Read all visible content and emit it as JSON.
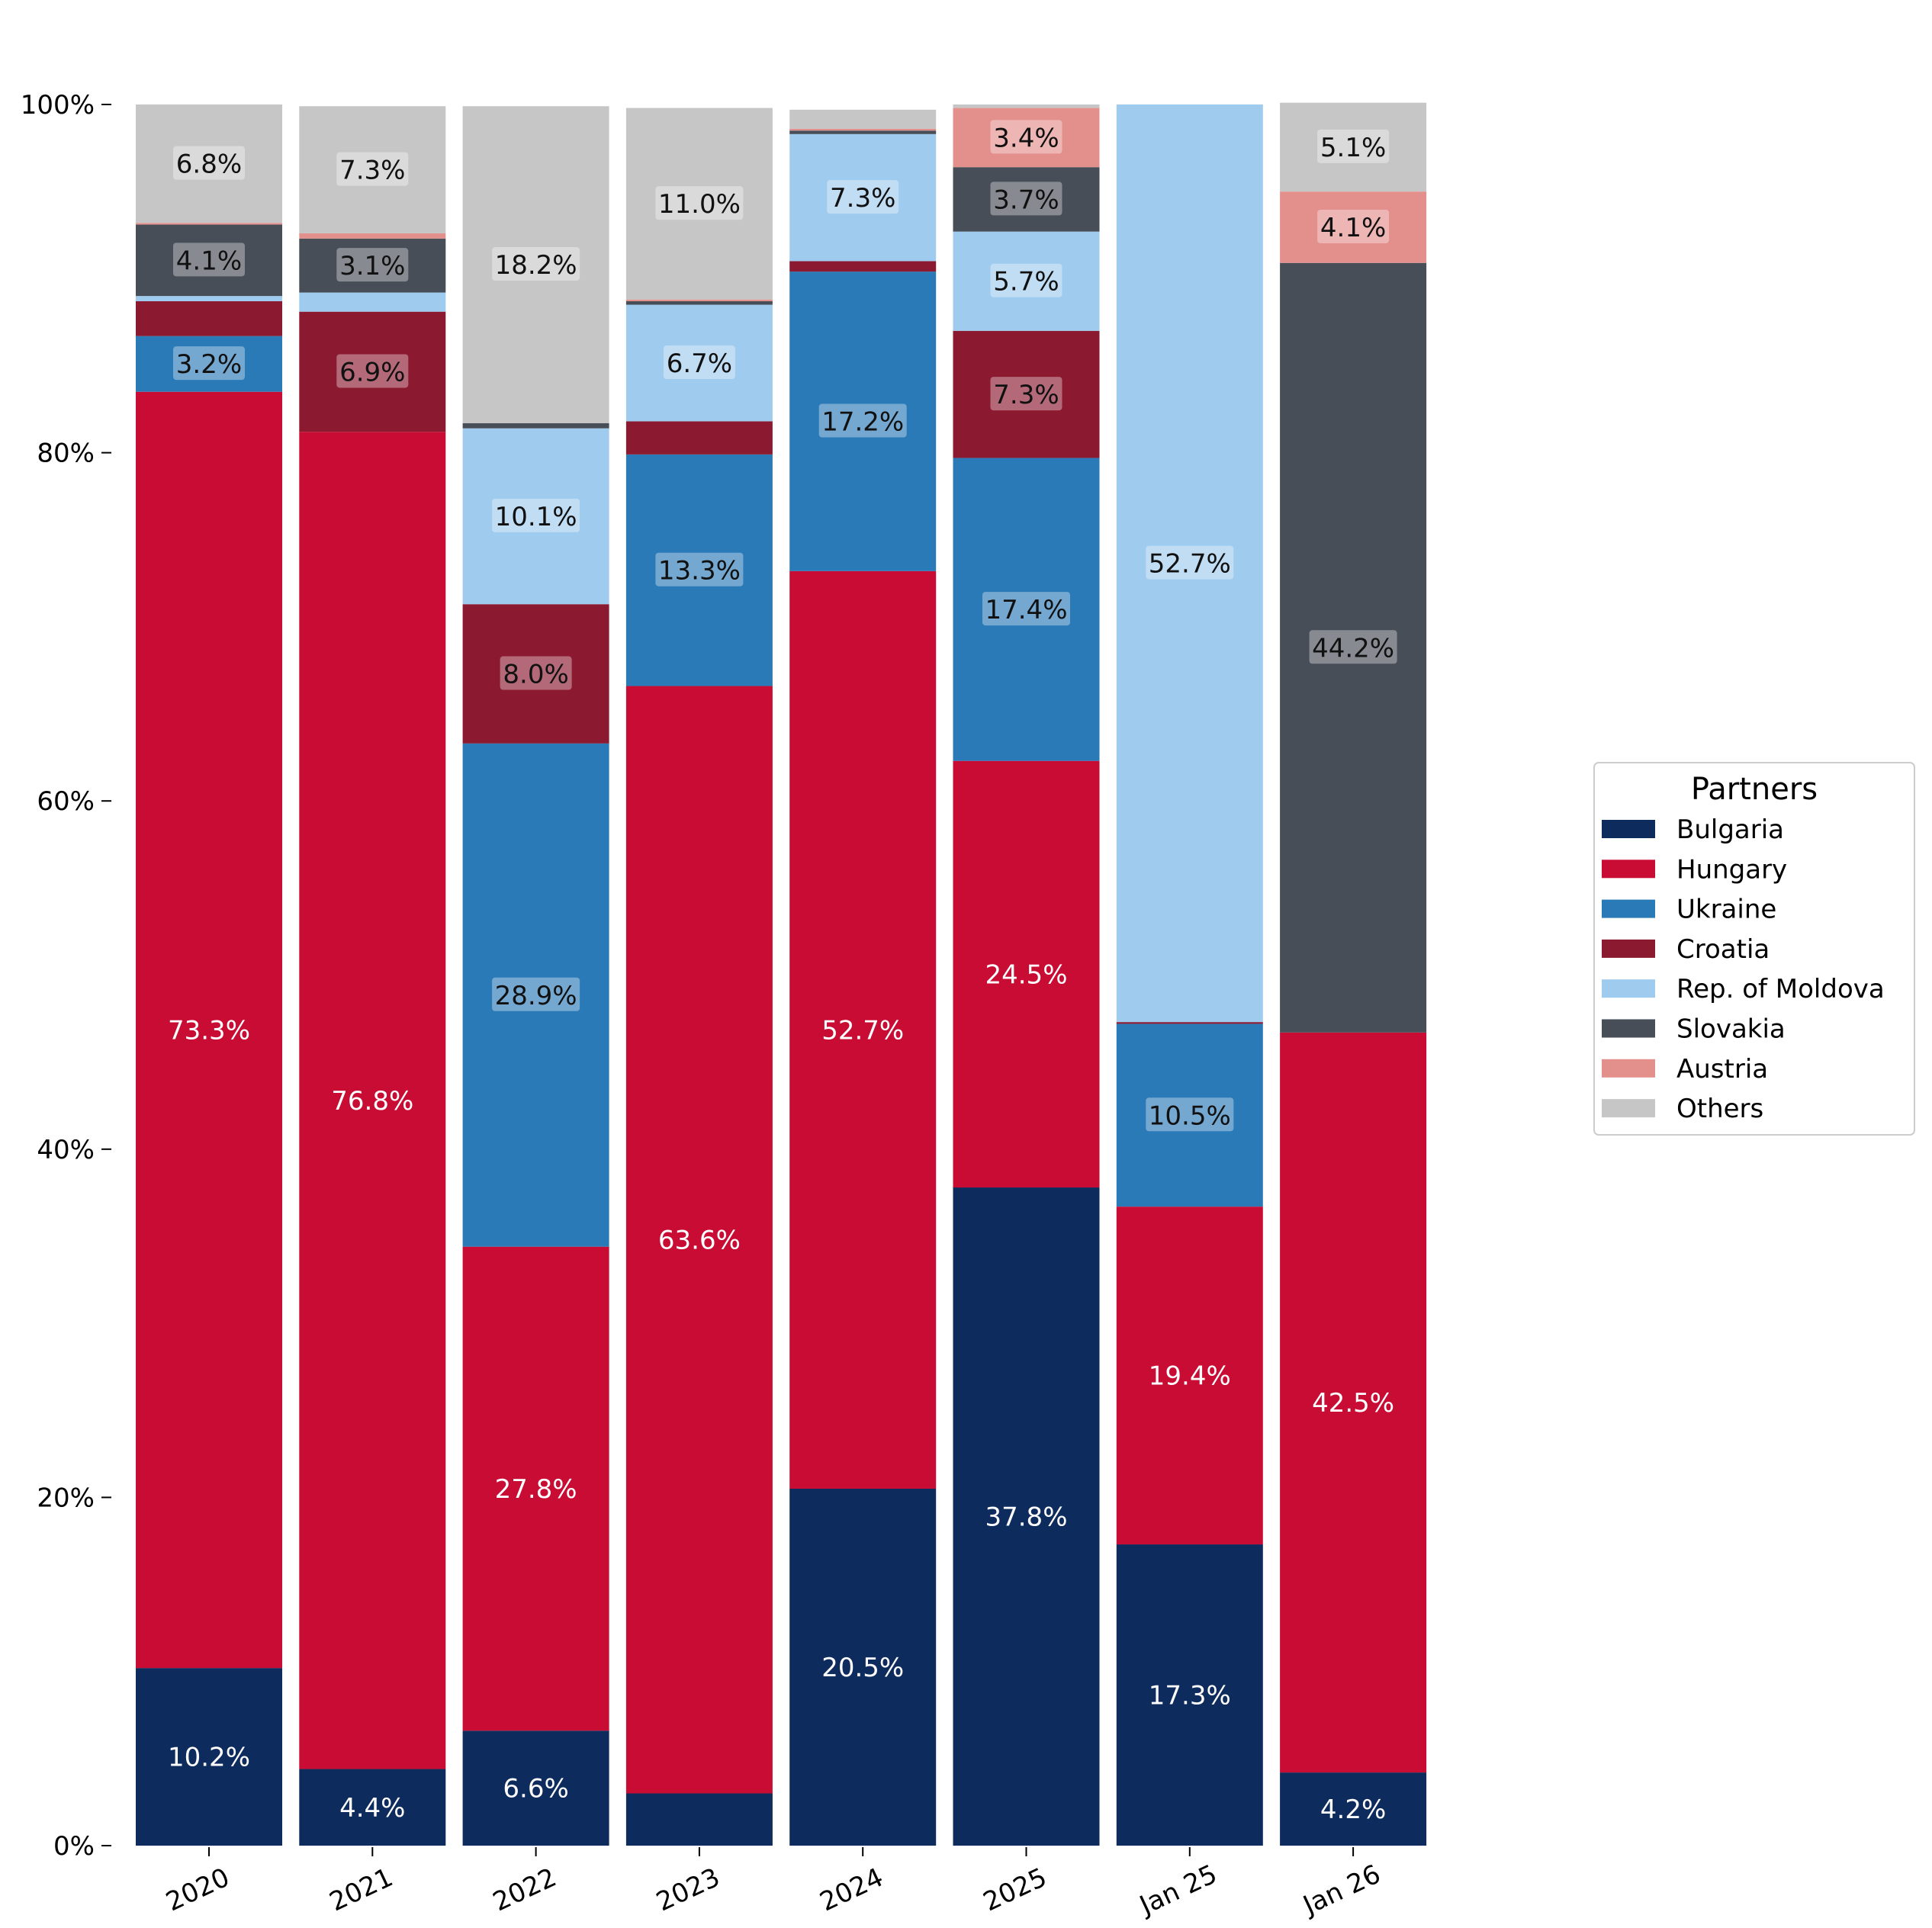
{
  "chart_data": {
    "type": "bar",
    "stacked": true,
    "categories": [
      "2020",
      "2021",
      "2022",
      "2023",
      "2024",
      "2025",
      "Jan 25",
      "Jan 26"
    ],
    "y_ticks": [
      "0%",
      "20%",
      "40%",
      "60%",
      "80%",
      "100%"
    ],
    "ylim": [
      0,
      100
    ],
    "legend": {
      "title": "Partners",
      "position": "right"
    },
    "series": [
      {
        "name": "Bulgaria",
        "color": "#0d2b5c",
        "values": [
          10.2,
          4.4,
          6.6,
          3.0,
          20.5,
          37.8,
          17.3,
          4.2
        ],
        "labels": [
          "10.2%",
          "4.4%",
          "6.6%",
          "",
          "20.5%",
          "37.8%",
          "17.3%",
          "4.2%"
        ]
      },
      {
        "name": "Hungary",
        "color": "#c80c33",
        "values": [
          73.3,
          76.8,
          27.8,
          63.6,
          52.7,
          24.5,
          19.4,
          42.5
        ],
        "labels": [
          "73.3%",
          "76.8%",
          "27.8%",
          "63.6%",
          "52.7%",
          "24.5%",
          "19.4%",
          "42.5%"
        ]
      },
      {
        "name": "Ukraine",
        "color": "#2b7ab8",
        "values": [
          3.2,
          0.0,
          28.9,
          13.3,
          17.2,
          17.4,
          10.5,
          0.0
        ],
        "labels": [
          "3.2%",
          "",
          "28.9%",
          "13.3%",
          "17.2%",
          "17.4%",
          "10.5%",
          ""
        ]
      },
      {
        "name": "Croatia",
        "color": "#8b1a30",
        "values": [
          2.0,
          6.9,
          8.0,
          1.9,
          0.6,
          7.3,
          0.1,
          0.0
        ],
        "labels": [
          "",
          "6.9%",
          "8.0%",
          "",
          "",
          "7.3%",
          "",
          ""
        ]
      },
      {
        "name": "Rep. of Moldova",
        "color": "#9ecbee",
        "values": [
          0.3,
          1.1,
          10.1,
          6.7,
          7.3,
          5.7,
          52.7,
          0.0
        ],
        "labels": [
          "",
          "",
          "10.1%",
          "6.7%",
          "7.3%",
          "5.7%",
          "52.7%",
          ""
        ]
      },
      {
        "name": "Slovakia",
        "color": "#474e57",
        "values": [
          4.1,
          3.1,
          0.3,
          0.2,
          0.2,
          3.7,
          0.0,
          44.2
        ],
        "labels": [
          "4.1%",
          "3.1%",
          "",
          "",
          "",
          "3.7%",
          "",
          "44.2%"
        ]
      },
      {
        "name": "Austria",
        "color": "#e3908c",
        "values": [
          0.1,
          0.3,
          0.0,
          0.1,
          0.1,
          3.4,
          0.0,
          4.1
        ],
        "labels": [
          "",
          "",
          "",
          "",
          "",
          "3.4%",
          "",
          "4.1%"
        ]
      },
      {
        "name": "Others",
        "color": "#c6c6c6",
        "values": [
          6.8,
          7.3,
          18.2,
          11.0,
          1.1,
          0.2,
          0.0,
          5.1
        ],
        "labels": [
          "6.8%",
          "7.3%",
          "18.2%",
          "11.0%",
          "",
          "",
          "",
          "5.1%"
        ]
      }
    ]
  }
}
